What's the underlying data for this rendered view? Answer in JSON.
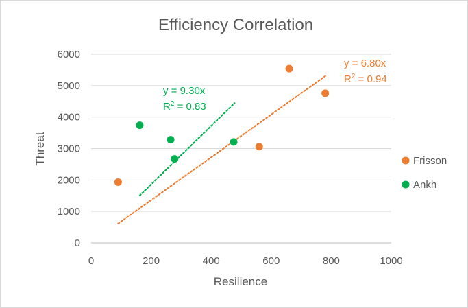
{
  "chart_data": {
    "type": "scatter",
    "title": "Efficiency Correlation",
    "xlabel": "Resilience",
    "ylabel": "Threat",
    "xlim": [
      0,
      1000
    ],
    "ylim": [
      0,
      6000
    ],
    "x_ticks": [
      "0",
      "200",
      "400",
      "600",
      "800",
      "1000"
    ],
    "y_ticks": [
      "0",
      "1000",
      "2000",
      "3000",
      "4000",
      "5000",
      "6000"
    ],
    "grid": "horizontal",
    "legend_position": "right",
    "series": [
      {
        "name": "Frisson",
        "color": "#ED7D31",
        "points": [
          {
            "x": 90,
            "y": 1930
          },
          {
            "x": 560,
            "y": 3060
          },
          {
            "x": 660,
            "y": 5540
          },
          {
            "x": 780,
            "y": 4760
          }
        ],
        "trendline": {
          "slope": 6.8,
          "x_range": [
            90,
            780
          ],
          "equation": "y = 6.80x",
          "r2_prefix": "R",
          "r2_sup": "2",
          "r2_value": " = 0.94"
        }
      },
      {
        "name": "Ankh",
        "color": "#00B050",
        "points": [
          {
            "x": 162,
            "y": 3740
          },
          {
            "x": 265,
            "y": 3280
          },
          {
            "x": 278,
            "y": 2670
          },
          {
            "x": 475,
            "y": 3210
          }
        ],
        "trendline": {
          "slope": 9.3,
          "x_range": [
            162,
            478
          ],
          "equation": "y = 9.30x",
          "r2_prefix": "R",
          "r2_sup": "2",
          "r2_value": " = 0.83"
        }
      }
    ]
  }
}
